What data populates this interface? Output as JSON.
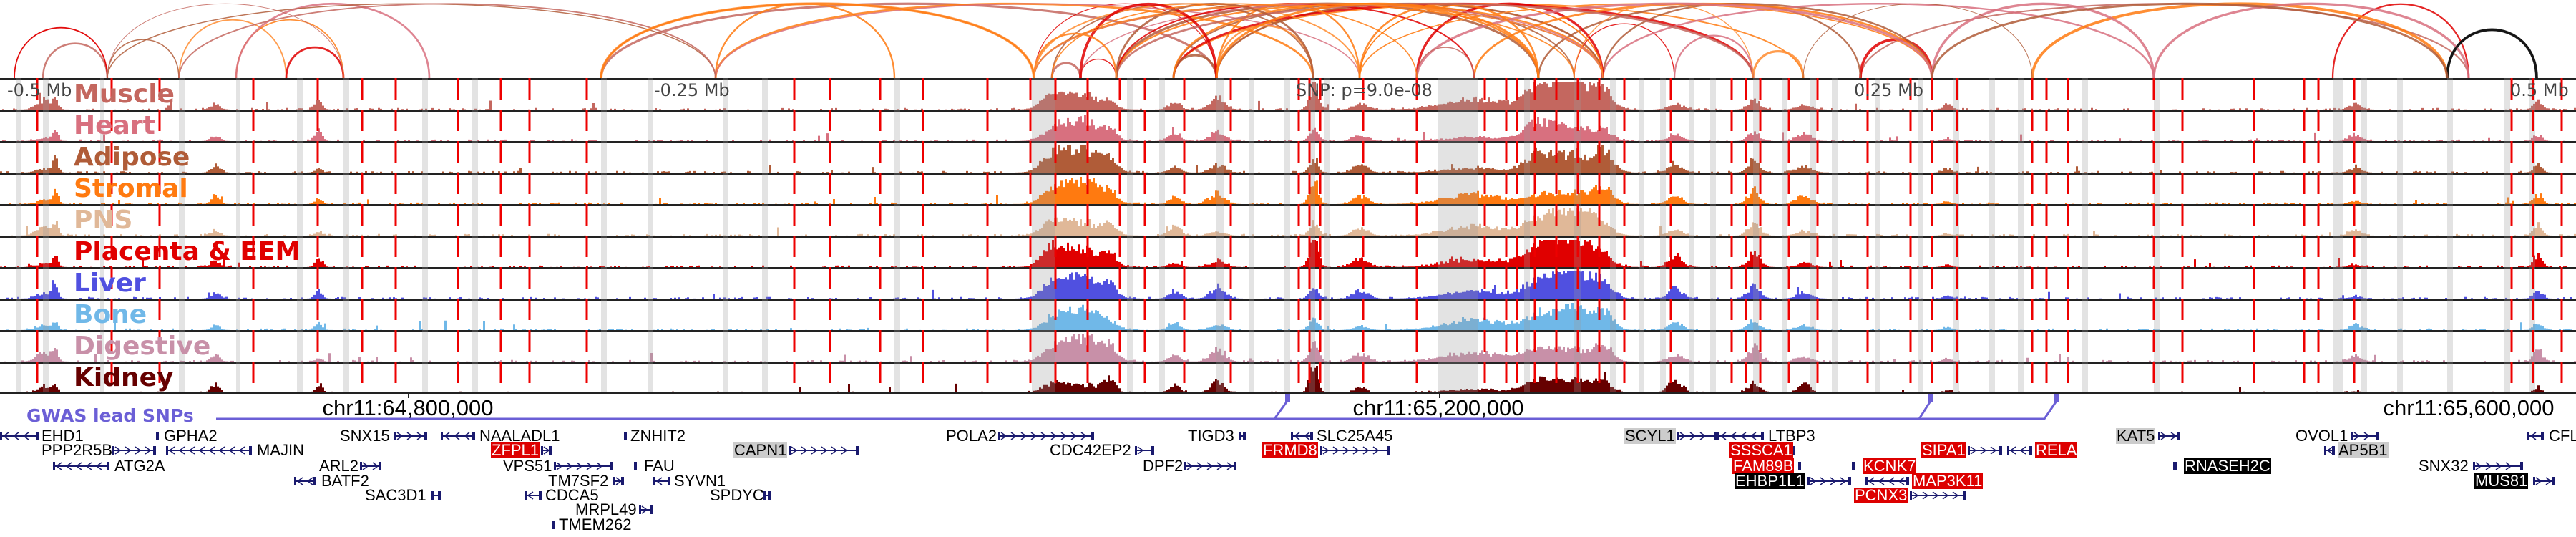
{
  "ruler": {
    "left": "-0.5 Mb",
    "left_mid": "-0.25 Mb",
    "snp": "SNP: p=9.0e-08",
    "right_mid": "0.25 Mb",
    "right": "0.5 Mb"
  },
  "tracks": [
    {
      "label": "Muscle",
      "color": "#c4675f"
    },
    {
      "label": "Heart",
      "color": "#d8707f"
    },
    {
      "label": "Adipose",
      "color": "#b05c38"
    },
    {
      "label": "Stromal",
      "color": "#ff7a10"
    },
    {
      "label": "PNS",
      "color": "#e0b898"
    },
    {
      "label": "Placenta & EEM",
      "color": "#e00000"
    },
    {
      "label": "Liver",
      "color": "#5050e0"
    },
    {
      "label": "Bone",
      "color": "#70b8e8"
    },
    {
      "label": "Digestive",
      "color": "#c890a8"
    },
    {
      "label": "Kidney",
      "color": "#660000"
    }
  ],
  "axis": {
    "positions": [
      "chr11:64,800,000",
      "chr11:65,200,000",
      "chr11:65,600,000"
    ]
  },
  "gwas": {
    "label": "GWAS lead SNPs",
    "color": "#6b5fd6"
  },
  "genes": [
    {
      "name": "EHD1",
      "style": "plain",
      "strand": "-"
    },
    {
      "name": "GPHA2",
      "style": "plain",
      "strand": "+"
    },
    {
      "name": "PPP2R5B",
      "style": "plain",
      "strand": "+"
    },
    {
      "name": "MAJIN",
      "style": "plain",
      "strand": "-"
    },
    {
      "name": "ATG2A",
      "style": "plain",
      "strand": "-"
    },
    {
      "name": "SNX15",
      "style": "plain",
      "strand": "+"
    },
    {
      "name": "NAALADL1",
      "style": "plain",
      "strand": "-"
    },
    {
      "name": "ZNHIT2",
      "style": "plain",
      "strand": "+"
    },
    {
      "name": "ZFPL1",
      "style": "red",
      "strand": "+"
    },
    {
      "name": "CAPN1",
      "style": "grey",
      "strand": "+"
    },
    {
      "name": "ARL2",
      "style": "plain",
      "strand": "+"
    },
    {
      "name": "BATF2",
      "style": "plain",
      "strand": "-"
    },
    {
      "name": "SAC3D1",
      "style": "plain",
      "strand": "+"
    },
    {
      "name": "VPS51",
      "style": "plain",
      "strand": "+"
    },
    {
      "name": "FAU",
      "style": "plain",
      "strand": "+"
    },
    {
      "name": "TM7SF2",
      "style": "plain",
      "strand": "+"
    },
    {
      "name": "SYVN1",
      "style": "plain",
      "strand": "-"
    },
    {
      "name": "CDCA5",
      "style": "plain",
      "strand": "-"
    },
    {
      "name": "SPDYC",
      "style": "plain",
      "strand": "+"
    },
    {
      "name": "MRPL49",
      "style": "plain",
      "strand": "+"
    },
    {
      "name": "TMEM262",
      "style": "plain",
      "strand": "+"
    },
    {
      "name": "POLA2",
      "style": "plain",
      "strand": "+"
    },
    {
      "name": "CDC42EP2",
      "style": "plain",
      "strand": "+"
    },
    {
      "name": "DPF2",
      "style": "plain",
      "strand": "+"
    },
    {
      "name": "TIGD3",
      "style": "plain",
      "strand": "+"
    },
    {
      "name": "SLC25A45",
      "style": "plain",
      "strand": "-"
    },
    {
      "name": "FRMD8",
      "style": "red",
      "strand": "+"
    },
    {
      "name": "SCYL1",
      "style": "grey",
      "strand": "+"
    },
    {
      "name": "LTBP3",
      "style": "plain",
      "strand": "-"
    },
    {
      "name": "SSSCA1",
      "style": "red",
      "strand": "+"
    },
    {
      "name": "FAM89B",
      "style": "red",
      "strand": "+"
    },
    {
      "name": "EHBP1L1",
      "style": "black",
      "strand": "+"
    },
    {
      "name": "KCNK7",
      "style": "red",
      "strand": "-"
    },
    {
      "name": "MAP3K11",
      "style": "red",
      "strand": "-"
    },
    {
      "name": "PCNX3",
      "style": "red",
      "strand": "+"
    },
    {
      "name": "SIPA1",
      "style": "red",
      "strand": "+"
    },
    {
      "name": "RELA",
      "style": "red",
      "strand": "-"
    },
    {
      "name": "KAT5",
      "style": "grey",
      "strand": "+"
    },
    {
      "name": "RNASEH2C",
      "style": "black",
      "strand": "-"
    },
    {
      "name": "OVOL1",
      "style": "plain",
      "strand": "+"
    },
    {
      "name": "AP5B1",
      "style": "grey",
      "strand": "-"
    },
    {
      "name": "SNX32",
      "style": "plain",
      "strand": "+"
    },
    {
      "name": "MUS81",
      "style": "black",
      "strand": "+"
    },
    {
      "name": "CFL",
      "style": "plain",
      "strand": "-"
    }
  ]
}
